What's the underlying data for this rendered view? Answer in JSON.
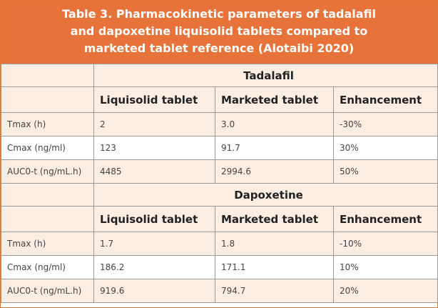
{
  "title": "Table 3. Pharmacokinetic parameters of tadalafil and dapoxetine liquisolid tablets compared to marketed tablet reference (Alotaibi 2020)",
  "sections": [
    {
      "name": "Tadalafil",
      "columns": [
        "Liquisolid tablet",
        "Marketed tablet",
        "Enhancement"
      ],
      "rows": [
        [
          "Tmax (h)",
          "2",
          "3.0",
          "-30%"
        ],
        [
          "Cmax (ng/ml)",
          "123",
          "91.7",
          "30%"
        ],
        [
          "AUC0-t (ng/mL.h)",
          "4485",
          "2994.6",
          "50%"
        ]
      ]
    },
    {
      "name": "Dapoxetine",
      "columns": [
        "Liquisolid tablet",
        "Marketed tablet",
        "Enhancement"
      ],
      "rows": [
        [
          "Tmax (h)",
          "1.7",
          "1.8",
          "-10%"
        ],
        [
          "Cmax (ng/ml)",
          "186.2",
          "171.1",
          "10%"
        ],
        [
          "AUC0-t (ng/mL.h)",
          "919.6",
          "794.7",
          "20%"
        ]
      ]
    }
  ]
}
